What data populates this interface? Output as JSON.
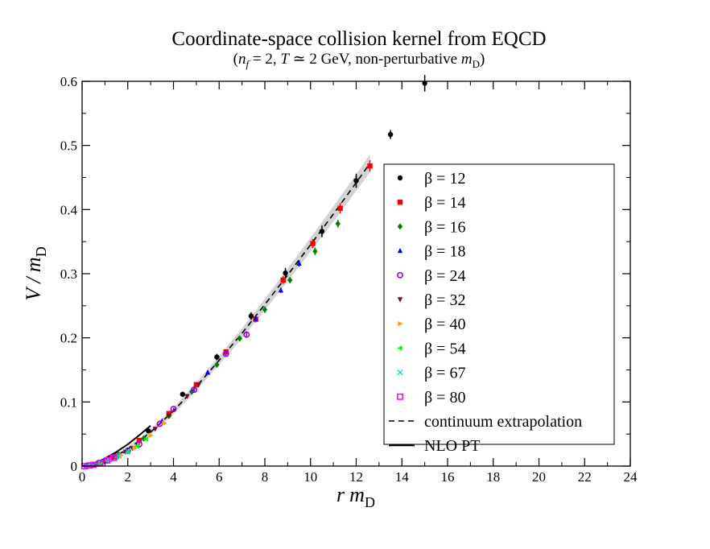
{
  "chart_data": {
    "type": "scatter",
    "title": "Coordinate-space collision kernel from EQCD",
    "subtitle": "(n_f = 2, T ≃ 2 GeV, non-perturbative m_D)",
    "subtitle_parts": {
      "open": "(",
      "nf_n": "n",
      "nf_sub": "f",
      "nf_rest": " = 2, ",
      "T": "T",
      "T_rest": " ≃ 2 GeV, non-perturbative ",
      "m": "m",
      "m_sub": "D",
      "close": ")"
    },
    "xlabel": "r m_D",
    "xlabel_parts": {
      "r": "r",
      "m": "m",
      "sub": "D"
    },
    "ylabel": "V / m_D",
    "ylabel_parts": {
      "V": "V / m",
      "sub": "D"
    },
    "xlim": [
      0,
      24
    ],
    "ylim": [
      0,
      0.6
    ],
    "xticks": [
      "0",
      "2",
      "4",
      "6",
      "8",
      "10",
      "12",
      "14",
      "16",
      "18",
      "20",
      "22",
      "24"
    ],
    "yticks": [
      "0",
      "0.1",
      "0.2",
      "0.3",
      "0.4",
      "0.5",
      "0.6"
    ],
    "grid": false,
    "legend_position": "right",
    "series": [
      {
        "name": "β = 12",
        "marker": "circle",
        "color": "#000000",
        "x": [
          0.3,
          0.6,
          1.5,
          2.9,
          4.4,
          5.9,
          7.4,
          8.9,
          10.5,
          12.0,
          13.5,
          15.0
        ],
        "y": [
          0.001,
          0.003,
          0.017,
          0.055,
          0.112,
          0.17,
          0.234,
          0.301,
          0.366,
          0.445,
          0.517,
          0.597
        ],
        "err": [
          0.001,
          0.001,
          0.002,
          0.003,
          0.004,
          0.005,
          0.006,
          0.008,
          0.009,
          0.011,
          0.007,
          0.013
        ]
      },
      {
        "name": "β = 14",
        "marker": "square",
        "color": "#ff0000",
        "x": [
          0.5,
          1.3,
          2.5,
          3.8,
          5.0,
          6.3,
          7.6,
          8.8,
          10.1,
          11.3,
          12.6
        ],
        "y": [
          0.002,
          0.014,
          0.04,
          0.082,
          0.127,
          0.178,
          0.229,
          0.29,
          0.347,
          0.402,
          0.468
        ],
        "err": [
          0.001,
          0.001,
          0.002,
          0.003,
          0.003,
          0.004,
          0.005,
          0.006,
          0.007,
          0.008,
          0.009
        ]
      },
      {
        "name": "β = 16",
        "marker": "diamond",
        "color": "#008000",
        "x": [
          0.6,
          1.6,
          2.7,
          3.8,
          4.8,
          5.9,
          6.9,
          8.0,
          9.1,
          10.2,
          11.2
        ],
        "y": [
          0.003,
          0.018,
          0.043,
          0.078,
          0.116,
          0.158,
          0.199,
          0.244,
          0.29,
          0.335,
          0.378
        ],
        "err": [
          0.001,
          0.001,
          0.002,
          0.002,
          0.003,
          0.003,
          0.004,
          0.005,
          0.005,
          0.006,
          0.006
        ]
      },
      {
        "name": "β = 18",
        "marker": "triangle-up",
        "color": "#0000ff",
        "x": [
          0.5,
          1.0,
          1.9,
          3.5,
          5.5,
          7.6,
          8.7,
          9.5
        ],
        "y": [
          0.002,
          0.007,
          0.023,
          0.07,
          0.146,
          0.23,
          0.274,
          0.316
        ],
        "err": [
          0.001,
          0.001,
          0.001,
          0.002,
          0.003,
          0.004,
          0.004,
          0.005
        ]
      },
      {
        "name": "β = 24",
        "marker": "circle-open",
        "color": "#9400d3",
        "x": [
          0.2,
          0.4,
          0.7,
          1.0,
          1.5,
          2.0,
          2.5,
          3.4,
          4.0,
          4.9,
          6.3,
          7.2
        ],
        "y": [
          0.0,
          0.001,
          0.004,
          0.008,
          0.015,
          0.024,
          0.034,
          0.066,
          0.089,
          0.119,
          0.175,
          0.205
        ],
        "err": [
          0.0005,
          0.0005,
          0.001,
          0.001,
          0.001,
          0.001,
          0.002,
          0.002,
          0.002,
          0.003,
          0.003,
          0.004
        ]
      },
      {
        "name": "β = 32",
        "marker": "triangle-down",
        "color": "#7b0a3c",
        "x": [
          0.3,
          0.6,
          0.9,
          1.3,
          1.9,
          2.2,
          3.2,
          3.8,
          4.6,
          5.1
        ],
        "y": [
          0.001,
          0.003,
          0.006,
          0.011,
          0.022,
          0.028,
          0.058,
          0.079,
          0.109,
          0.127
        ],
        "err": [
          0.0005,
          0.0005,
          0.001,
          0.001,
          0.001,
          0.001,
          0.002,
          0.002,
          0.003,
          0.003
        ]
      },
      {
        "name": "β = 40",
        "marker": "triangle-right",
        "color": "#ffa500",
        "x": [
          0.4,
          0.8,
          1.2,
          1.7,
          2.3,
          3.0,
          3.6
        ],
        "y": [
          0.001,
          0.005,
          0.01,
          0.017,
          0.028,
          0.048,
          0.067
        ],
        "err": [
          0.0005,
          0.0005,
          0.001,
          0.001,
          0.001,
          0.002,
          0.002
        ]
      },
      {
        "name": "β = 54",
        "marker": "triangle-left",
        "color": "#00ff00",
        "x": [
          0.3,
          0.7,
          1.1,
          1.5,
          2.0,
          2.4,
          2.8
        ],
        "y": [
          0.001,
          0.004,
          0.008,
          0.014,
          0.022,
          0.031,
          0.042
        ],
        "err": [
          0.0005,
          0.0005,
          0.001,
          0.001,
          0.001,
          0.001,
          0.002
        ]
      },
      {
        "name": "β = 67",
        "marker": "x",
        "color": "#00d0d0",
        "x": [
          0.2,
          0.5,
          0.8,
          1.2,
          1.6,
          2.0
        ],
        "y": [
          0.0,
          0.002,
          0.005,
          0.01,
          0.016,
          0.023
        ],
        "err": [
          0.0005,
          0.0005,
          0.001,
          0.001,
          0.001,
          0.001
        ]
      },
      {
        "name": "β = 80",
        "marker": "square-open",
        "color": "#ff00ff",
        "x": [
          0.1,
          0.3,
          0.5,
          0.8,
          1.1,
          1.4
        ],
        "y": [
          0.0,
          0.001,
          0.002,
          0.005,
          0.009,
          0.013
        ],
        "err": [
          0.0005,
          0.0005,
          0.0005,
          0.001,
          0.001,
          0.001
        ]
      }
    ],
    "curves": [
      {
        "name": "continuum extrapolation",
        "style": "dashed",
        "color": "#000000",
        "band_color": "#d3d3d3",
        "x": [
          0,
          0.5,
          1,
          1.5,
          2,
          2.5,
          3,
          4,
          5,
          6,
          7,
          8,
          9,
          10,
          11,
          12,
          12.6
        ],
        "y": [
          0,
          0.002,
          0.008,
          0.016,
          0.027,
          0.039,
          0.053,
          0.086,
          0.124,
          0.165,
          0.207,
          0.252,
          0.298,
          0.345,
          0.393,
          0.442,
          0.472
        ],
        "band": [
          0.002,
          0.002,
          0.003,
          0.003,
          0.003,
          0.004,
          0.004,
          0.005,
          0.006,
          0.007,
          0.008,
          0.009,
          0.01,
          0.011,
          0.012,
          0.013,
          0.014
        ]
      },
      {
        "name": "NLO PT",
        "style": "solid",
        "color": "#000000",
        "x": [
          0,
          0.5,
          1,
          1.5,
          2,
          2.5,
          3
        ],
        "y": [
          0,
          0.003,
          0.012,
          0.022,
          0.034,
          0.048,
          0.063
        ]
      }
    ]
  }
}
